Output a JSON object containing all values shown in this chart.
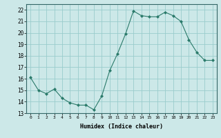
{
  "x": [
    0,
    1,
    2,
    3,
    4,
    5,
    6,
    7,
    8,
    9,
    10,
    11,
    12,
    13,
    14,
    15,
    16,
    17,
    18,
    19,
    20,
    21,
    22,
    23
  ],
  "y": [
    16.1,
    15.0,
    14.7,
    15.1,
    14.3,
    13.9,
    13.7,
    13.7,
    13.3,
    14.5,
    16.7,
    18.2,
    19.9,
    21.9,
    21.5,
    21.4,
    21.4,
    21.8,
    21.5,
    21.0,
    19.4,
    18.3,
    17.6,
    17.6
  ],
  "line_color": "#2a7a6a",
  "marker": "D",
  "marker_size": 2.0,
  "bg_color": "#cce8e8",
  "grid_color": "#99cccc",
  "xlabel": "Humidex (Indice chaleur)",
  "ylim": [
    13,
    22.5
  ],
  "xlim": [
    -0.5,
    23.5
  ],
  "yticks": [
    13,
    14,
    15,
    16,
    17,
    18,
    19,
    20,
    21,
    22
  ],
  "xticks": [
    0,
    1,
    2,
    3,
    4,
    5,
    6,
    7,
    8,
    9,
    10,
    11,
    12,
    13,
    14,
    15,
    16,
    17,
    18,
    19,
    20,
    21,
    22,
    23
  ],
  "xtick_labels": [
    "0",
    "1",
    "2",
    "3",
    "4",
    "5",
    "6",
    "7",
    "8",
    "9",
    "10",
    "11",
    "12",
    "13",
    "14",
    "15",
    "16",
    "17",
    "18",
    "19",
    "20",
    "21",
    "22",
    "23"
  ]
}
